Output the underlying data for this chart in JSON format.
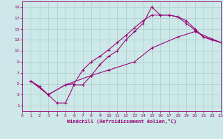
{
  "xlabel": "Windchill (Refroidissement éolien,°C)",
  "xlim": [
    0,
    23
  ],
  "ylim": [
    0,
    20
  ],
  "xticks": [
    0,
    1,
    2,
    3,
    4,
    5,
    6,
    7,
    8,
    9,
    10,
    11,
    12,
    13,
    14,
    15,
    16,
    17,
    18,
    19,
    20,
    21,
    22,
    23
  ],
  "yticks": [
    1,
    3,
    5,
    7,
    9,
    11,
    13,
    15,
    17,
    19
  ],
  "bg_color": "#cce8e8",
  "line_color": "#990077",
  "grid_color": "#aacccc",
  "line1_x": [
    1,
    2,
    3,
    4,
    5,
    6,
    7,
    8,
    9,
    10,
    11,
    12,
    13,
    14,
    15,
    16,
    17,
    18,
    19,
    20,
    21,
    22,
    23
  ],
  "line1_y": [
    5.5,
    4.5,
    3.0,
    1.5,
    1.5,
    4.8,
    4.8,
    6.5,
    8.5,
    10.0,
    11.0,
    13.0,
    14.5,
    16.0,
    19.0,
    17.5,
    17.5,
    17.2,
    16.5,
    15.0,
    13.5,
    13.0,
    12.5
  ],
  "line2_x": [
    1,
    3,
    5,
    6,
    7,
    8,
    9,
    10,
    11,
    12,
    13,
    14,
    15,
    16,
    17,
    18,
    19,
    20,
    21,
    22,
    23
  ],
  "line2_y": [
    5.5,
    3.0,
    4.8,
    5.0,
    7.5,
    9.0,
    10.0,
    11.2,
    12.5,
    13.8,
    15.2,
    16.5,
    17.5,
    17.5,
    17.5,
    17.2,
    16.0,
    14.8,
    13.5,
    13.0,
    12.5
  ],
  "line3_x": [
    1,
    3,
    5,
    8,
    10,
    13,
    15,
    18,
    20,
    23
  ],
  "line3_y": [
    5.5,
    3.0,
    4.8,
    6.5,
    7.5,
    9.0,
    11.5,
    13.5,
    14.5,
    12.5
  ]
}
